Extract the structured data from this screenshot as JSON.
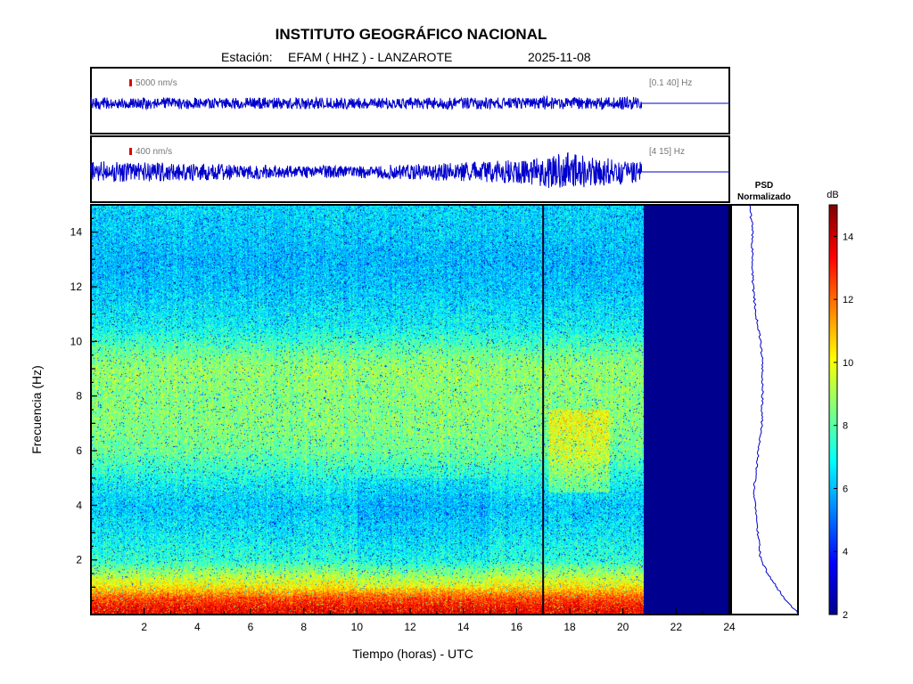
{
  "header": {
    "title": "INSTITUTO GEOGRÁFICO NACIONAL",
    "station_prefix": "Estación:",
    "station": "EFAM ( HHZ ) - LANZAROTE",
    "date": "2025-11-08"
  },
  "chart_data": [
    {
      "type": "line",
      "name": "seismogram-broadband",
      "scale_label": "5000 nm/s",
      "band_label": "[0.1 40] Hz",
      "x_range_hours": [
        0,
        24
      ],
      "data_end_hour": 20.7,
      "relative_amplitude_profile": [
        {
          "x": 0,
          "amp": 0.18
        },
        {
          "x": 17,
          "amp": 0.18
        },
        {
          "x": 17.1,
          "amp": 0.3
        },
        {
          "x": 17.2,
          "amp": 0.18
        },
        {
          "x": 20.7,
          "amp": 0.2
        }
      ]
    },
    {
      "type": "line",
      "name": "seismogram-filtered",
      "scale_label": "400 nm/s",
      "band_label": "[4 15] Hz",
      "x_range_hours": [
        0,
        24
      ],
      "data_end_hour": 20.7,
      "relative_amplitude_profile": [
        {
          "x": 0,
          "amp": 0.35
        },
        {
          "x": 2,
          "amp": 0.3
        },
        {
          "x": 5,
          "amp": 0.25
        },
        {
          "x": 8,
          "amp": 0.18
        },
        {
          "x": 11,
          "amp": 0.22
        },
        {
          "x": 14,
          "amp": 0.3
        },
        {
          "x": 16.5,
          "amp": 0.4
        },
        {
          "x": 17.5,
          "amp": 0.55
        },
        {
          "x": 18,
          "amp": 0.6
        },
        {
          "x": 19,
          "amp": 0.45
        },
        {
          "x": 20.7,
          "amp": 0.35
        }
      ]
    },
    {
      "type": "heatmap",
      "name": "spectrogram",
      "xlabel": "Tiempo (horas) - UTC",
      "ylabel": "Frecuencia  (Hz)",
      "xlim": [
        0,
        24
      ],
      "ylim": [
        0,
        15
      ],
      "xticks": [
        2,
        4,
        6,
        8,
        10,
        12,
        14,
        16,
        18,
        20,
        22,
        24
      ],
      "yticks": [
        2,
        4,
        6,
        8,
        10,
        12,
        14
      ],
      "data_end_hour": 20.7,
      "gap_line_hour": 17.0,
      "color_range_db": [
        2,
        15
      ],
      "approx_db_by_frequency": [
        {
          "f": 0.2,
          "db": 13.5
        },
        {
          "f": 0.6,
          "db": 12.5
        },
        {
          "f": 1.0,
          "db": 10.5
        },
        {
          "f": 1.5,
          "db": 9.0
        },
        {
          "f": 2.0,
          "db": 7.5
        },
        {
          "f": 3.0,
          "db": 6.8
        },
        {
          "f": 4.0,
          "db": 6.3
        },
        {
          "f": 5.0,
          "db": 7.2
        },
        {
          "f": 6.0,
          "db": 8.3
        },
        {
          "f": 7.0,
          "db": 8.6
        },
        {
          "f": 8.0,
          "db": 8.6
        },
        {
          "f": 9.0,
          "db": 8.8
        },
        {
          "f": 9.5,
          "db": 8.4
        },
        {
          "f": 10.5,
          "db": 7.0
        },
        {
          "f": 12.0,
          "db": 6.2
        },
        {
          "f": 13.0,
          "db": 6.0
        },
        {
          "f": 14.0,
          "db": 6.3
        },
        {
          "f": 15.0,
          "db": 6.5
        }
      ],
      "highlight": {
        "hours": [
          17.2,
          19.5
        ],
        "freq_hz": [
          4.5,
          7.5
        ],
        "db_boost": 1.3
      }
    },
    {
      "type": "line",
      "name": "psd-normalized",
      "title_line1": "PSD",
      "title_line2": "Normalizado",
      "ylim": [
        0,
        15
      ],
      "xlim": [
        0,
        1
      ],
      "points": [
        {
          "f": 15.0,
          "v": 0.28
        },
        {
          "f": 14.0,
          "v": 0.32
        },
        {
          "f": 13.0,
          "v": 0.31
        },
        {
          "f": 12.0,
          "v": 0.33
        },
        {
          "f": 11.0,
          "v": 0.37
        },
        {
          "f": 10.0,
          "v": 0.44
        },
        {
          "f": 9.5,
          "v": 0.46
        },
        {
          "f": 9.0,
          "v": 0.47
        },
        {
          "f": 8.0,
          "v": 0.47
        },
        {
          "f": 7.0,
          "v": 0.46
        },
        {
          "f": 6.0,
          "v": 0.41
        },
        {
          "f": 5.0,
          "v": 0.36
        },
        {
          "f": 4.5,
          "v": 0.34
        },
        {
          "f": 4.0,
          "v": 0.36
        },
        {
          "f": 3.0,
          "v": 0.4
        },
        {
          "f": 2.0,
          "v": 0.44
        },
        {
          "f": 1.5,
          "v": 0.55
        },
        {
          "f": 1.0,
          "v": 0.68
        },
        {
          "f": 0.6,
          "v": 0.8
        },
        {
          "f": 0.3,
          "v": 0.9
        },
        {
          "f": 0.05,
          "v": 1.0
        }
      ]
    },
    {
      "type": "colorbar",
      "name": "colorbar-db",
      "unit": "dB",
      "range": [
        2,
        15
      ],
      "ticks": [
        2,
        4,
        6,
        8,
        10,
        12,
        14
      ],
      "colormap": "jet"
    }
  ]
}
